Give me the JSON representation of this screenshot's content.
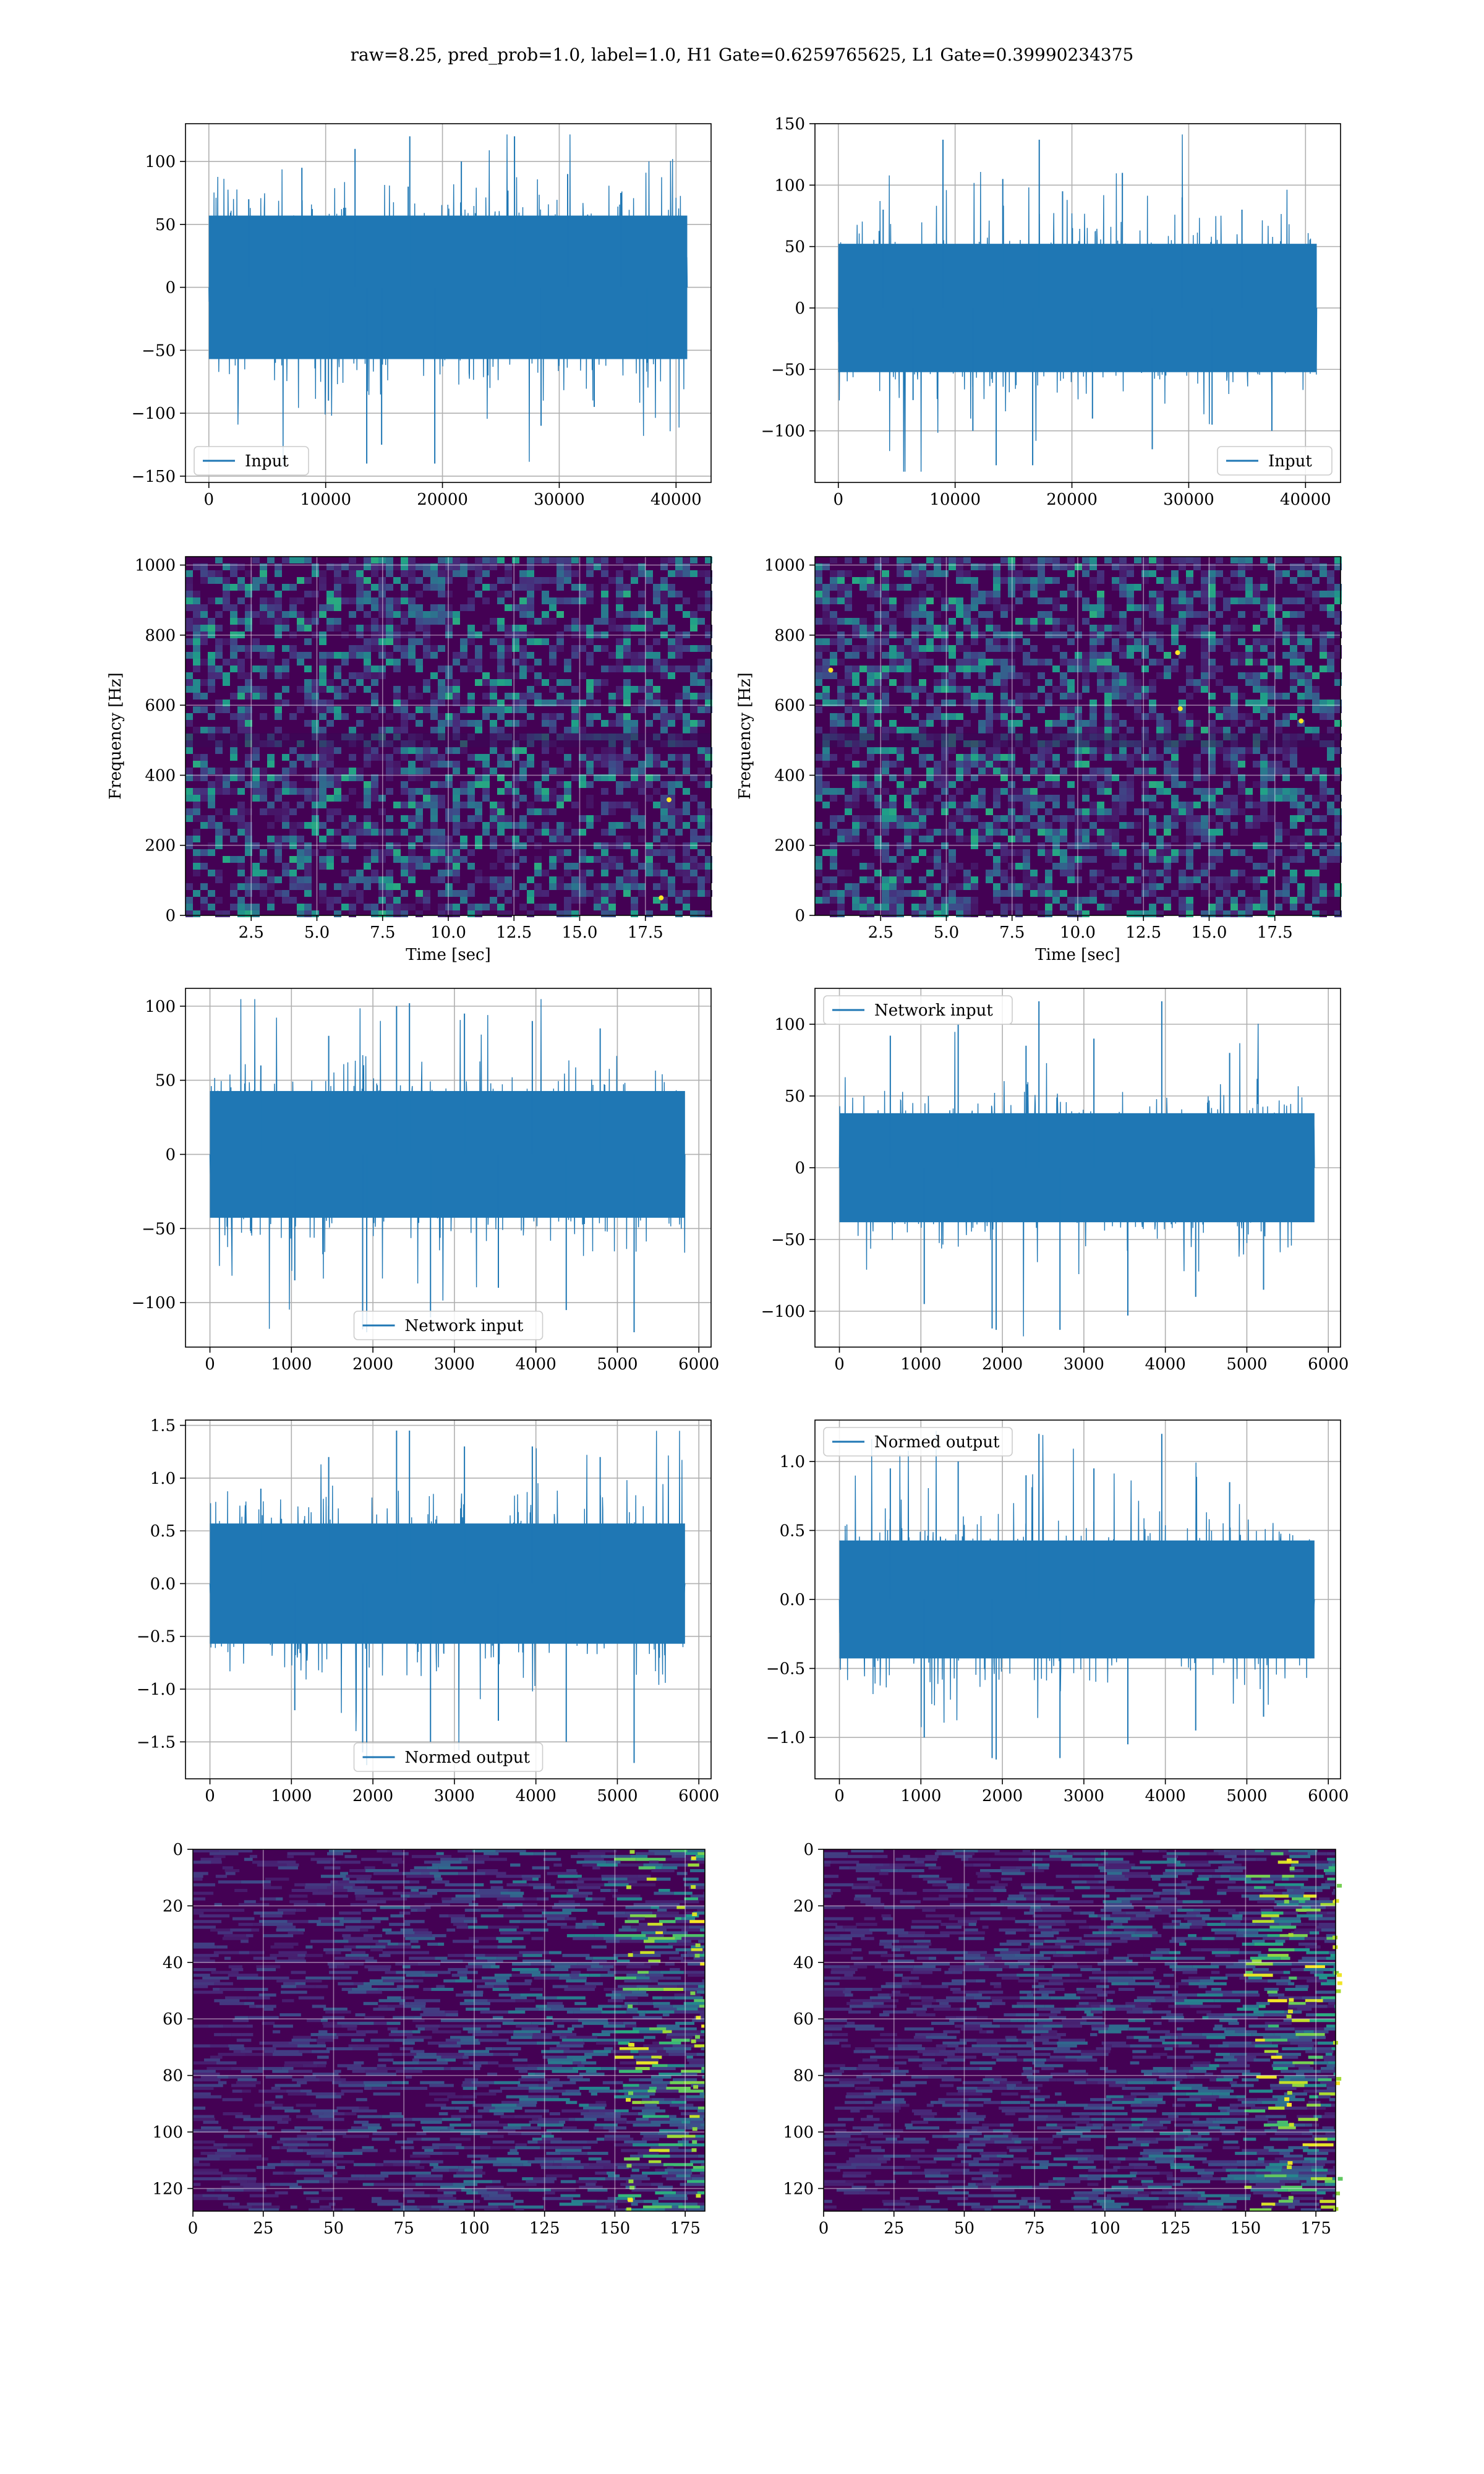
{
  "figure": {
    "title": "raw=8.25, pred_prob=1.0, label=1.0, H1 Gate=0.6259765625, L1 Gate=0.39990234375"
  },
  "colors": {
    "line": "#1f77b4",
    "viridis_low": "#440154",
    "viridis_mid": "#21918c",
    "viridis_high": "#fde725"
  },
  "chart_data": [
    {
      "id": "h1-input",
      "type": "line",
      "legend": "Input",
      "legend_loc": "lower left",
      "xlim": [
        -2000,
        43000
      ],
      "ylim": [
        -155,
        130
      ],
      "xticks": [
        0,
        10000,
        20000,
        30000,
        40000
      ],
      "yticks": [
        -150,
        -100,
        -50,
        0,
        50,
        100
      ],
      "series": [
        {
          "x_range": [
            0,
            40960
          ],
          "values": [
            0,
            70,
            -60,
            95,
            -90,
            110,
            -125,
            80,
            -140,
            100,
            -70,
            120,
            -110,
            90,
            -95,
            75,
            -60,
            0
          ],
          "envelope": [
            -60,
            60
          ],
          "peaks": [
            120,
            -140
          ]
        }
      ]
    },
    {
      "id": "l1-input",
      "type": "line",
      "legend": "Input",
      "legend_loc": "lower right",
      "xlim": [
        -2000,
        43000
      ],
      "ylim": [
        -142,
        150
      ],
      "xticks": [
        0,
        10000,
        20000,
        30000,
        40000
      ],
      "yticks": [
        -100,
        -50,
        0,
        50,
        100,
        150
      ],
      "series": [
        {
          "x_range": [
            0,
            40960
          ],
          "values": [
            0,
            80,
            -75,
            137,
            -100,
            105,
            -128,
            95,
            -90,
            110,
            -115,
            90,
            -95,
            80,
            -100,
            0
          ],
          "envelope": [
            -55,
            55
          ],
          "peaks": [
            137,
            -128
          ]
        }
      ]
    },
    {
      "id": "h1-spectrogram",
      "type": "heatmap",
      "xlabel": "Time [sec]",
      "ylabel": "Frequency [Hz]",
      "xlim": [
        0,
        20
      ],
      "ylim": [
        0,
        1024
      ],
      "xticks": [
        2.5,
        5.0,
        7.5,
        10.0,
        12.5,
        15.0,
        17.5
      ],
      "xticklabels": [
        "2.5",
        "5.0",
        "7.5",
        "10.0",
        "12.5",
        "15.0",
        "17.5"
      ],
      "yticks": [
        0,
        200,
        400,
        600,
        800,
        1000
      ],
      "colormap": "viridis",
      "bright_spots": [
        [
          18.1,
          50
        ],
        [
          18.4,
          330
        ]
      ]
    },
    {
      "id": "l1-spectrogram",
      "type": "heatmap",
      "xlabel": "Time [sec]",
      "ylabel": "Frequency [Hz]",
      "xlim": [
        0,
        20
      ],
      "ylim": [
        0,
        1024
      ],
      "xticks": [
        2.5,
        5.0,
        7.5,
        10.0,
        12.5,
        15.0,
        17.5
      ],
      "xticklabels": [
        "2.5",
        "5.0",
        "7.5",
        "10.0",
        "12.5",
        "15.0",
        "17.5"
      ],
      "yticks": [
        0,
        200,
        400,
        600,
        800,
        1000
      ],
      "colormap": "viridis",
      "bright_spots": [
        [
          13.8,
          750
        ],
        [
          18.5,
          555
        ],
        [
          13.9,
          590
        ],
        [
          0.6,
          700
        ]
      ]
    },
    {
      "id": "h1-network-input",
      "type": "line",
      "legend": "Network input",
      "legend_loc": "lower center",
      "xlim": [
        -300,
        6150
      ],
      "ylim": [
        -130,
        112
      ],
      "xticks": [
        0,
        1000,
        2000,
        3000,
        4000,
        5000,
        6000
      ],
      "yticks": [
        -100,
        -50,
        0,
        50,
        100
      ],
      "series": [
        {
          "x_range": [
            0,
            5830
          ],
          "values": [
            0,
            60,
            -85,
            80,
            -118,
            100,
            -110,
            95,
            -90,
            90,
            -105,
            85,
            -120,
            0
          ],
          "envelope": [
            -45,
            45
          ],
          "peaks": [
            102,
            -120
          ]
        }
      ]
    },
    {
      "id": "l1-network-input",
      "type": "line",
      "legend": "Network input",
      "legend_loc": "upper left",
      "xlim": [
        -300,
        6150
      ],
      "ylim": [
        -125,
        125
      ],
      "xticks": [
        0,
        1000,
        2000,
        3000,
        4000,
        5000,
        6000
      ],
      "yticks": [
        -100,
        -50,
        0,
        50,
        100
      ],
      "series": [
        {
          "x_range": [
            0,
            5830
          ],
          "values": [
            0,
            92,
            -95,
            100,
            -112,
            85,
            -113,
            90,
            -103,
            116,
            -90,
            80,
            -85,
            0
          ],
          "envelope": [
            -40,
            40
          ],
          "peaks": [
            116,
            -113
          ]
        }
      ]
    },
    {
      "id": "h1-normed-output",
      "type": "line",
      "legend": "Normed output",
      "legend_loc": "lower center",
      "xlim": [
        -300,
        6150
      ],
      "ylim": [
        -1.85,
        1.55
      ],
      "xticks": [
        0,
        1000,
        2000,
        3000,
        4000,
        5000,
        6000
      ],
      "yticks": [
        -1.5,
        -1.0,
        -0.5,
        0.0,
        0.5,
        1.0,
        1.5
      ],
      "yticklabels": [
        "−1.5",
        "−1.0",
        "−0.5",
        "0.0",
        "0.5",
        "1.0",
        "1.5"
      ],
      "series": [
        {
          "x_range": [
            0,
            5830
          ],
          "values": [
            0,
            0.9,
            -1.2,
            1.2,
            -1.6,
            1.45,
            -1.5,
            1.3,
            -1.3,
            1.3,
            -1.5,
            1.2,
            -1.7,
            0
          ],
          "envelope": [
            -0.6,
            0.6
          ],
          "peaks": [
            1.45,
            -1.72
          ]
        }
      ]
    },
    {
      "id": "l1-normed-output",
      "type": "line",
      "legend": "Normed output",
      "legend_loc": "upper left",
      "xlim": [
        -300,
        6150
      ],
      "ylim": [
        -1.3,
        1.3
      ],
      "xticks": [
        0,
        1000,
        2000,
        3000,
        4000,
        5000,
        6000
      ],
      "yticks": [
        -1.0,
        -0.5,
        0.0,
        0.5,
        1.0
      ],
      "yticklabels": [
        "−1.0",
        "−0.5",
        "0.0",
        "0.5",
        "1.0"
      ],
      "series": [
        {
          "x_range": [
            0,
            5830
          ],
          "values": [
            0,
            0.95,
            -1.0,
            1.0,
            -1.15,
            0.9,
            -1.15,
            0.95,
            -1.05,
            1.2,
            -0.95,
            0.85,
            -0.85,
            0
          ],
          "envelope": [
            -0.45,
            0.45
          ],
          "peaks": [
            1.2,
            -1.16
          ]
        }
      ]
    },
    {
      "id": "h1-feature-map",
      "type": "heatmap",
      "xlim": [
        0,
        182
      ],
      "ylim": [
        0,
        128
      ],
      "y_inverted": true,
      "xticks": [
        0,
        25,
        50,
        75,
        100,
        125,
        150,
        175
      ],
      "yticks": [
        0,
        20,
        40,
        60,
        80,
        100,
        120
      ],
      "colormap": "viridis",
      "bright_columns": [
        155,
        178
      ]
    },
    {
      "id": "l1-feature-map",
      "type": "heatmap",
      "xlim": [
        0,
        182
      ],
      "ylim": [
        0,
        128
      ],
      "y_inverted": true,
      "xticks": [
        0,
        25,
        50,
        75,
        100,
        125,
        150,
        175
      ],
      "yticks": [
        0,
        20,
        40,
        60,
        80,
        100,
        120
      ],
      "colormap": "viridis",
      "bright_columns": [
        165,
        182
      ]
    }
  ]
}
